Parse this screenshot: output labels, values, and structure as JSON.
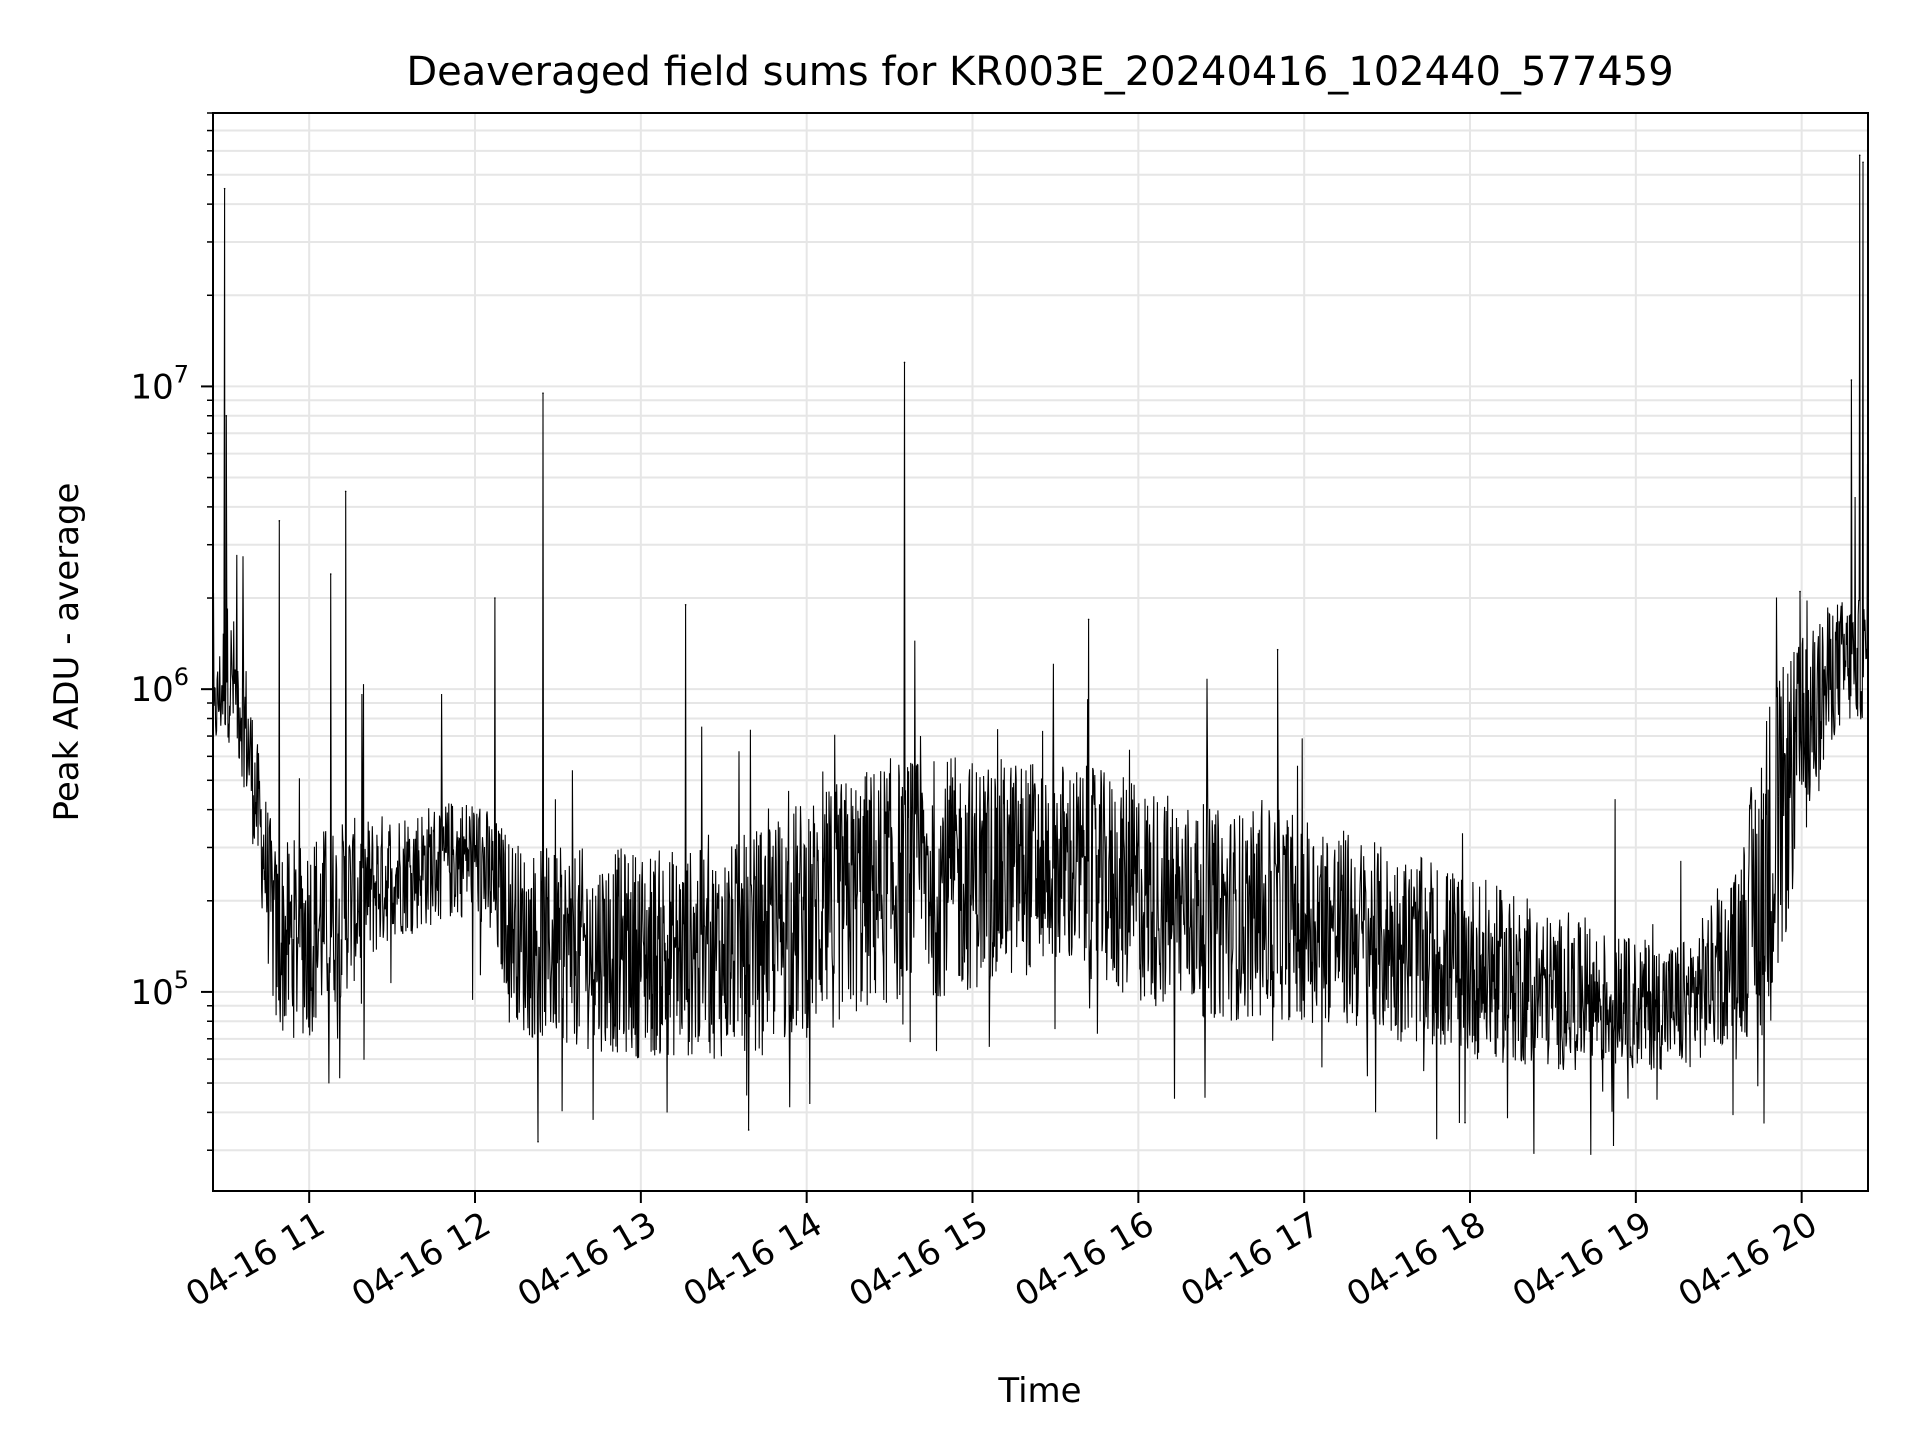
{
  "chart_data": {
    "type": "line",
    "title": "Deaveraged field sums for KR003E_20240416_102440_577459",
    "xlabel": "Time",
    "ylabel": "Peak ADU - average",
    "x_range_hours": [
      10.42,
      20.4
    ],
    "ylim": [
      22000,
      80000000
    ],
    "yscale": "log",
    "grid": true,
    "x_ticks": [
      {
        "value": 11,
        "label": "04-16 11"
      },
      {
        "value": 12,
        "label": "04-16 12"
      },
      {
        "value": 13,
        "label": "04-16 13"
      },
      {
        "value": 14,
        "label": "04-16 14"
      },
      {
        "value": 15,
        "label": "04-16 15"
      },
      {
        "value": 16,
        "label": "04-16 16"
      },
      {
        "value": 17,
        "label": "04-16 17"
      },
      {
        "value": 18,
        "label": "04-16 18"
      },
      {
        "value": 19,
        "label": "04-16 19"
      },
      {
        "value": 20,
        "label": "04-16 20"
      }
    ],
    "y_ticks": [
      {
        "value": 100000,
        "base": "10",
        "exp": "5"
      },
      {
        "value": 1000000,
        "base": "10",
        "exp": "6"
      },
      {
        "value": 10000000,
        "base": "10",
        "exp": "7"
      }
    ],
    "series": [
      {
        "name": "field sums",
        "color": "#000000",
        "baseline_envelope": {
          "x": [
            10.42,
            10.5,
            10.6,
            10.7,
            10.8,
            11.0,
            11.5,
            12.0,
            12.3,
            13.0,
            13.5,
            14.0,
            14.5,
            15.0,
            15.5,
            16.0,
            16.5,
            17.0,
            17.5,
            18.0,
            18.5,
            19.0,
            19.3,
            19.6,
            19.8,
            20.0,
            20.2,
            20.4
          ],
          "low": [
            600000,
            700000,
            500000,
            220000,
            70000,
            70000,
            150000,
            180000,
            70000,
            60000,
            60000,
            70000,
            90000,
            100000,
            120000,
            90000,
            80000,
            80000,
            70000,
            60000,
            55000,
            55000,
            55000,
            70000,
            70000,
            300000,
            700000,
            800000
          ],
          "high": [
            1000000,
            2000000,
            1500000,
            600000,
            300000,
            350000,
            400000,
            450000,
            300000,
            300000,
            300000,
            450000,
            600000,
            600000,
            600000,
            500000,
            400000,
            400000,
            300000,
            250000,
            180000,
            150000,
            150000,
            250000,
            1000000,
            1500000,
            2000000,
            2000000
          ]
        },
        "spikes": [
          {
            "x": 10.49,
            "y": 45000000
          },
          {
            "x": 10.5,
            "y": 8000000
          },
          {
            "x": 10.82,
            "y": 3600000
          },
          {
            "x": 11.22,
            "y": 4500000
          },
          {
            "x": 11.13,
            "y": 2400000
          },
          {
            "x": 12.12,
            "y": 2000000
          },
          {
            "x": 12.41,
            "y": 9500000
          },
          {
            "x": 13.27,
            "y": 1900000
          },
          {
            "x": 14.59,
            "y": 12000000
          },
          {
            "x": 15.7,
            "y": 1700000
          },
          {
            "x": 16.84,
            "y": 1350000
          },
          {
            "x": 19.99,
            "y": 2100000
          },
          {
            "x": 20.3,
            "y": 10500000
          },
          {
            "x": 20.35,
            "y": 58000000
          },
          {
            "x": 20.37,
            "y": 55000000
          },
          {
            "x": 12.38,
            "y": 32000
          },
          {
            "x": 13.65,
            "y": 35000
          },
          {
            "x": 17.97,
            "y": 37000
          }
        ]
      }
    ]
  }
}
